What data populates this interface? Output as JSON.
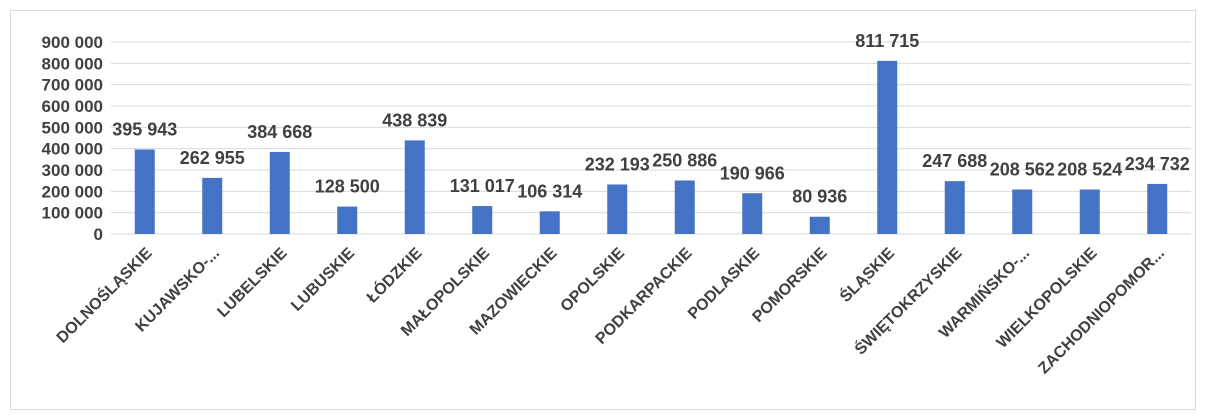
{
  "chart_data": {
    "type": "bar",
    "title": "",
    "xlabel": "",
    "ylabel": "",
    "ylim": [
      0,
      900000
    ],
    "yticks": [
      {
        "value": 0,
        "label": "0"
      },
      {
        "value": 100000,
        "label": "100 000"
      },
      {
        "value": 200000,
        "label": "200 000"
      },
      {
        "value": 300000,
        "label": "300 000"
      },
      {
        "value": 400000,
        "label": "400 000"
      },
      {
        "value": 500000,
        "label": "500 000"
      },
      {
        "value": 600000,
        "label": "600 000"
      },
      {
        "value": 700000,
        "label": "700 000"
      },
      {
        "value": 800000,
        "label": "800 000"
      },
      {
        "value": 900000,
        "label": "900 000"
      }
    ],
    "grid": true,
    "legend": "none",
    "bar_color": "#4472C4",
    "categories": [
      "DOLNOŚLĄSKIE",
      "KUJAWSKO-...",
      "LUBELSKIE",
      "LUBUSKIE",
      "ŁÓDZKIE",
      "MAŁOPOLSKIE",
      "MAZOWIECKIE",
      "OPOLSKIE",
      "PODKARPACKIE",
      "PODLASKIE",
      "POMORSKIE",
      "ŚLĄSKIE",
      "ŚWIĘTOKRZYSKIE",
      "WARMIŃSKO-...",
      "WIELKOPOLSKIE",
      "ZACHODNIOPOMOR..."
    ],
    "values": [
      395943,
      262955,
      384668,
      128500,
      438839,
      131017,
      106314,
      232193,
      250886,
      190966,
      80936,
      811715,
      247688,
      208562,
      208524,
      234732
    ],
    "data_labels": [
      "395 943",
      "262 955",
      "384 668",
      "128 500",
      "438 839",
      "131 017",
      "106 314",
      "232 193",
      "250 886",
      "190 966",
      "80 936",
      "811 715",
      "247 688",
      "208 562",
      "208 524",
      "234 732"
    ]
  }
}
